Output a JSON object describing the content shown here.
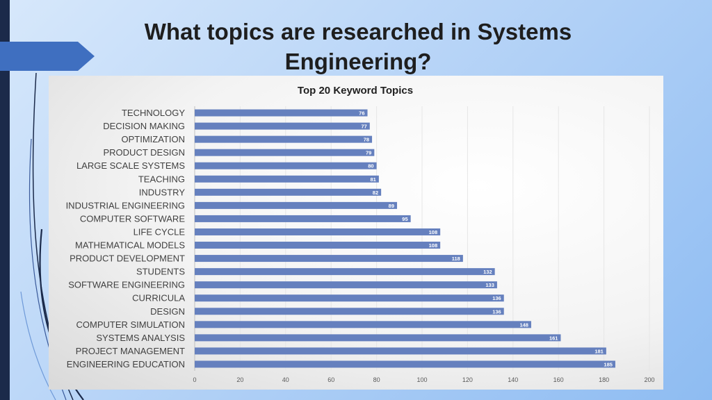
{
  "page_title": "What topics are researched in Systems Engineering?",
  "chart_data": {
    "type": "bar",
    "orientation": "horizontal",
    "title": "Top 20 Keyword Topics",
    "categories": [
      "TECHNOLOGY",
      "DECISION MAKING",
      "OPTIMIZATION",
      "PRODUCT DESIGN",
      "LARGE SCALE SYSTEMS",
      "TEACHING",
      "INDUSTRY",
      "INDUSTRIAL ENGINEERING",
      "COMPUTER SOFTWARE",
      "LIFE CYCLE",
      "MATHEMATICAL MODELS",
      "PRODUCT DEVELOPMENT",
      "STUDENTS",
      "SOFTWARE ENGINEERING",
      "CURRICULA",
      "DESIGN",
      "COMPUTER SIMULATION",
      "SYSTEMS ANALYSIS",
      "PROJECT MANAGEMENT",
      "ENGINEERING EDUCATION"
    ],
    "values": [
      76,
      77,
      78,
      79,
      80,
      81,
      82,
      89,
      95,
      108,
      108,
      118,
      132,
      133,
      136,
      136,
      148,
      161,
      181,
      185
    ],
    "xlim": [
      0,
      200
    ],
    "xticks": [
      0,
      20,
      40,
      60,
      80,
      100,
      120,
      140,
      160,
      180,
      200
    ],
    "grid": true,
    "legend": "none",
    "bar_color": "#6580be",
    "label_color": "#ffffff"
  }
}
